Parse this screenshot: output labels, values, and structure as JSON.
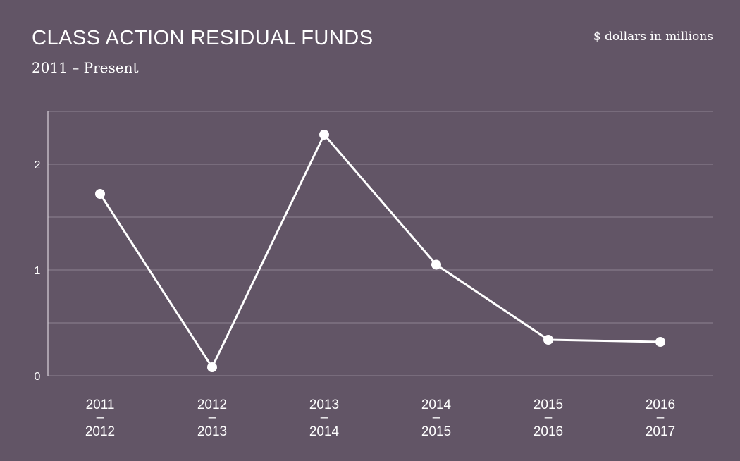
{
  "header": {
    "title": "CLASS ACTION RESIDUAL FUNDS",
    "subtitle": "2011 – Present",
    "units": "$ dollars in millions"
  },
  "colors": {
    "background": "#625566",
    "line": "#ffffff",
    "gridline": "#8e8392"
  },
  "chart_data": {
    "type": "line",
    "title": "CLASS ACTION RESIDUAL FUNDS",
    "subtitle": "2011 – Present",
    "ylabel": "$ dollars in millions",
    "xlabel": "",
    "categories": [
      [
        "2011",
        "–",
        "2012"
      ],
      [
        "2012",
        "–",
        "2013"
      ],
      [
        "2013",
        "–",
        "2014"
      ],
      [
        "2014",
        "–",
        "2015"
      ],
      [
        "2015",
        "–",
        "2016"
      ],
      [
        "2016",
        "–",
        "2017"
      ]
    ],
    "series": [
      {
        "values": [
          1.72,
          0.08,
          2.28,
          1.05,
          0.34,
          0.32
        ]
      }
    ],
    "yticks": [
      "0",
      "1",
      "2"
    ],
    "ylim": [
      0,
      2.5
    ],
    "grid": true,
    "legend": "none"
  }
}
